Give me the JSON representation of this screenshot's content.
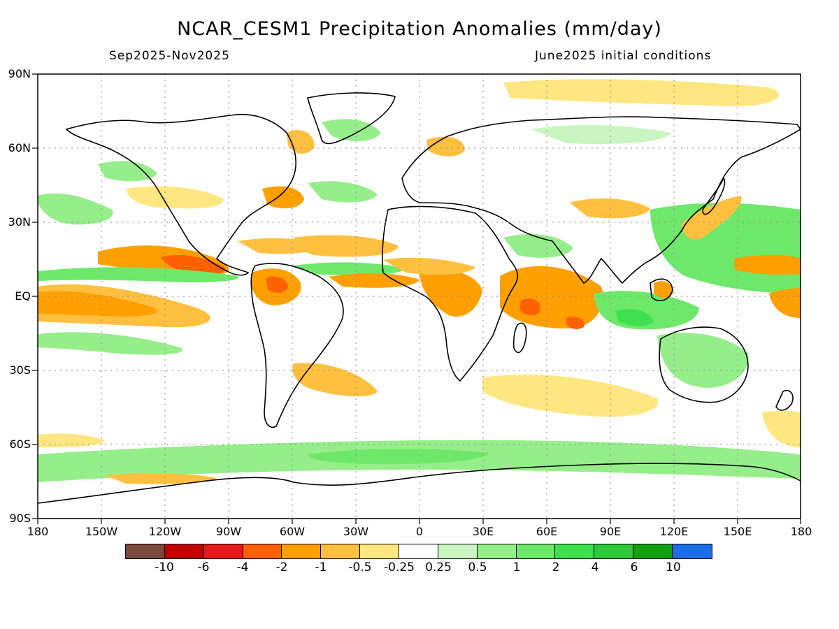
{
  "title": "NCAR_CESM1 Precipitation Anomalies (mm/day)",
  "subtitle_left": "Sep2025-Nov2025",
  "subtitle_right": "June2025 initial conditions",
  "lat_labels": [
    "90N",
    "60N",
    "30N",
    "EQ",
    "30S",
    "60S",
    "90S"
  ],
  "lon_labels": [
    "180",
    "150W",
    "120W",
    "90W",
    "60W",
    "30W",
    "0",
    "30E",
    "60E",
    "90E",
    "120E",
    "150E",
    "180"
  ],
  "colorbar": {
    "colors": [
      "#7a4a3f",
      "#c00000",
      "#e31a1c",
      "#ff6000",
      "#ffa000",
      "#ffc040",
      "#ffe680",
      "#ffffff",
      "#c8f5c0",
      "#96ee8a",
      "#6ee86a",
      "#3ee050",
      "#2ec83a",
      "#10a010",
      "#1c6ee8"
    ],
    "labels": [
      "-10",
      "-6",
      "-4",
      "-2",
      "-1",
      "-0.5",
      "-0.25",
      "0.25",
      "0.5",
      "1",
      "2",
      "4",
      "6",
      "10"
    ]
  },
  "legend_colors": {
    "dry_strong": "#ff6000",
    "dry": "#ffa000",
    "dry_weak": "#ffc040",
    "dry_light": "#ffe680",
    "wet_light": "#c8f5c0",
    "wet": "#96ee8a",
    "wet_mid": "#6ee86a",
    "wet_strong": "#3ee050"
  }
}
